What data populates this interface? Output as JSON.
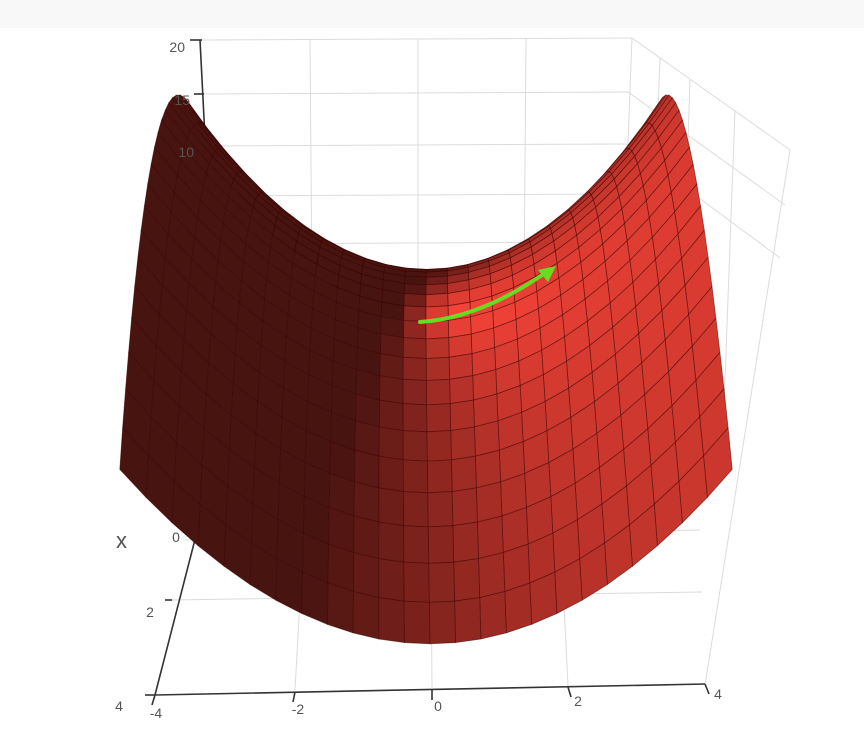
{
  "chart_data": {
    "type": "surface",
    "function": "z = y^2 - x^2",
    "x_range": [
      -4,
      4
    ],
    "y_range": [
      -4,
      4
    ],
    "z_range": [
      -20,
      20
    ],
    "grid_steps": 24,
    "x_axis": {
      "title": "x",
      "ticks": [
        "0",
        "2",
        "4"
      ]
    },
    "y_axis": {
      "title": "",
      "ticks": [
        "-4",
        "-2",
        "0",
        "2",
        "4"
      ]
    },
    "z_axis": {
      "title": "",
      "ticks": [
        "20",
        "15",
        "10"
      ]
    },
    "surface_color": "#ef4136",
    "annotation_arrow_color": "#66dd22",
    "grid": true
  }
}
